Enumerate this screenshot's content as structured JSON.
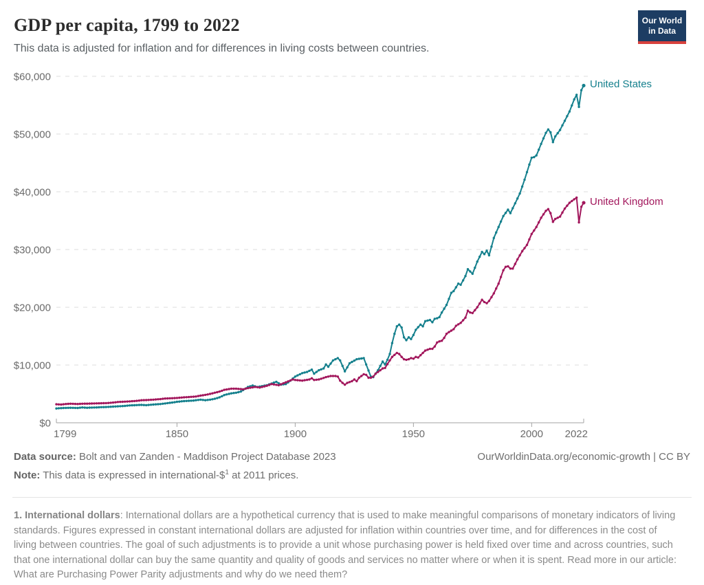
{
  "header": {
    "title": "GDP per capita, 1799 to 2022",
    "subtitle": "This data is adjusted for inflation and for differences in living costs between countries.",
    "logo_line1": "Our World",
    "logo_line2": "in Data",
    "logo_bg_color": "#1d3d63",
    "logo_accent_color": "#d7413d"
  },
  "chart_data": {
    "type": "line",
    "title": "GDP per capita, 1799 to 2022",
    "xlabel": "",
    "ylabel": "",
    "x_range": [
      1799,
      2022
    ],
    "ylim": [
      0,
      60000
    ],
    "grid": "horizontal-dashed",
    "legend_position": "end-of-line-labels",
    "marker": "yearly-dots",
    "y_ticks": [
      {
        "value": 0,
        "label": "$0"
      },
      {
        "value": 10000,
        "label": "$10,000"
      },
      {
        "value": 20000,
        "label": "$20,000"
      },
      {
        "value": 30000,
        "label": "$30,000"
      },
      {
        "value": 40000,
        "label": "$40,000"
      },
      {
        "value": 50000,
        "label": "$50,000"
      },
      {
        "value": 60000,
        "label": "$60,000"
      }
    ],
    "x_ticks": [
      {
        "value": 1799,
        "label": "1799"
      },
      {
        "value": 1850,
        "label": "1850"
      },
      {
        "value": 1900,
        "label": "1900"
      },
      {
        "value": 1950,
        "label": "1950"
      },
      {
        "value": 2000,
        "label": "2000"
      },
      {
        "value": 2022,
        "label": "2022"
      }
    ],
    "series": [
      {
        "name": "United States",
        "color": "#15808D",
        "points": [
          [
            1799,
            2480
          ],
          [
            1802,
            2560
          ],
          [
            1805,
            2600
          ],
          [
            1808,
            2560
          ],
          [
            1810,
            2650
          ],
          [
            1812,
            2600
          ],
          [
            1815,
            2640
          ],
          [
            1818,
            2700
          ],
          [
            1820,
            2730
          ],
          [
            1823,
            2800
          ],
          [
            1825,
            2850
          ],
          [
            1828,
            2920
          ],
          [
            1830,
            3000
          ],
          [
            1833,
            3060
          ],
          [
            1835,
            3100
          ],
          [
            1837,
            3050
          ],
          [
            1840,
            3160
          ],
          [
            1843,
            3240
          ],
          [
            1845,
            3350
          ],
          [
            1848,
            3500
          ],
          [
            1850,
            3630
          ],
          [
            1853,
            3750
          ],
          [
            1855,
            3800
          ],
          [
            1857,
            3850
          ],
          [
            1860,
            4000
          ],
          [
            1862,
            3900
          ],
          [
            1864,
            4000
          ],
          [
            1866,
            4150
          ],
          [
            1868,
            4400
          ],
          [
            1870,
            4800
          ],
          [
            1873,
            5100
          ],
          [
            1875,
            5200
          ],
          [
            1877,
            5400
          ],
          [
            1880,
            6200
          ],
          [
            1882,
            6450
          ],
          [
            1884,
            6200
          ],
          [
            1886,
            6350
          ],
          [
            1888,
            6500
          ],
          [
            1890,
            6800
          ],
          [
            1892,
            7100
          ],
          [
            1894,
            6600
          ],
          [
            1896,
            6700
          ],
          [
            1898,
            7300
          ],
          [
            1900,
            8000
          ],
          [
            1903,
            8600
          ],
          [
            1905,
            8800
          ],
          [
            1907,
            9200
          ],
          [
            1908,
            8500
          ],
          [
            1910,
            9100
          ],
          [
            1912,
            9400
          ],
          [
            1913,
            10100
          ],
          [
            1914,
            9700
          ],
          [
            1916,
            10800
          ],
          [
            1918,
            11200
          ],
          [
            1919,
            10800
          ],
          [
            1921,
            8900
          ],
          [
            1923,
            10300
          ],
          [
            1926,
            11000
          ],
          [
            1929,
            11200
          ],
          [
            1930,
            10100
          ],
          [
            1932,
            8000
          ],
          [
            1933,
            7900
          ],
          [
            1935,
            9100
          ],
          [
            1937,
            10600
          ],
          [
            1938,
            10100
          ],
          [
            1939,
            10900
          ],
          [
            1940,
            11900
          ],
          [
            1941,
            13800
          ],
          [
            1942,
            15400
          ],
          [
            1943,
            16700
          ],
          [
            1944,
            17000
          ],
          [
            1945,
            16500
          ],
          [
            1946,
            14800
          ],
          [
            1947,
            14300
          ],
          [
            1948,
            14800
          ],
          [
            1949,
            14500
          ],
          [
            1950,
            15200
          ],
          [
            1951,
            16100
          ],
          [
            1953,
            17000
          ],
          [
            1954,
            16700
          ],
          [
            1955,
            17600
          ],
          [
            1957,
            17800
          ],
          [
            1958,
            17400
          ],
          [
            1959,
            18000
          ],
          [
            1960,
            18100
          ],
          [
            1961,
            18300
          ],
          [
            1962,
            19100
          ],
          [
            1964,
            20400
          ],
          [
            1966,
            22500
          ],
          [
            1967,
            22800
          ],
          [
            1969,
            24100
          ],
          [
            1970,
            23900
          ],
          [
            1972,
            25400
          ],
          [
            1973,
            26600
          ],
          [
            1975,
            25800
          ],
          [
            1977,
            27900
          ],
          [
            1979,
            29600
          ],
          [
            1980,
            29200
          ],
          [
            1981,
            29800
          ],
          [
            1982,
            29000
          ],
          [
            1984,
            32000
          ],
          [
            1986,
            33900
          ],
          [
            1988,
            35800
          ],
          [
            1990,
            36900
          ],
          [
            1991,
            36300
          ],
          [
            1993,
            38000
          ],
          [
            1995,
            39700
          ],
          [
            1997,
            42100
          ],
          [
            1999,
            44700
          ],
          [
            2000,
            45900
          ],
          [
            2001,
            46000
          ],
          [
            2002,
            46300
          ],
          [
            2004,
            48300
          ],
          [
            2006,
            50200
          ],
          [
            2007,
            50800
          ],
          [
            2008,
            50300
          ],
          [
            2009,
            48600
          ],
          [
            2010,
            49600
          ],
          [
            2012,
            50700
          ],
          [
            2014,
            52300
          ],
          [
            2016,
            53900
          ],
          [
            2018,
            56000
          ],
          [
            2019,
            56800
          ],
          [
            2020,
            54700
          ],
          [
            2021,
            57600
          ],
          [
            2022,
            58400
          ]
        ]
      },
      {
        "name": "United Kingdom",
        "color": "#A2175C",
        "points": [
          [
            1799,
            3200
          ],
          [
            1801,
            3150
          ],
          [
            1803,
            3250
          ],
          [
            1805,
            3300
          ],
          [
            1808,
            3250
          ],
          [
            1810,
            3300
          ],
          [
            1813,
            3320
          ],
          [
            1815,
            3350
          ],
          [
            1818,
            3380
          ],
          [
            1820,
            3400
          ],
          [
            1823,
            3500
          ],
          [
            1825,
            3600
          ],
          [
            1828,
            3650
          ],
          [
            1830,
            3700
          ],
          [
            1833,
            3800
          ],
          [
            1835,
            3900
          ],
          [
            1838,
            3950
          ],
          [
            1840,
            4000
          ],
          [
            1843,
            4100
          ],
          [
            1845,
            4200
          ],
          [
            1848,
            4250
          ],
          [
            1850,
            4300
          ],
          [
            1853,
            4400
          ],
          [
            1855,
            4450
          ],
          [
            1858,
            4550
          ],
          [
            1860,
            4700
          ],
          [
            1863,
            4900
          ],
          [
            1865,
            5100
          ],
          [
            1868,
            5400
          ],
          [
            1870,
            5700
          ],
          [
            1873,
            5900
          ],
          [
            1875,
            5900
          ],
          [
            1878,
            5800
          ],
          [
            1880,
            6000
          ],
          [
            1883,
            6200
          ],
          [
            1885,
            6100
          ],
          [
            1888,
            6400
          ],
          [
            1890,
            6700
          ],
          [
            1893,
            6500
          ],
          [
            1896,
            7000
          ],
          [
            1899,
            7500
          ],
          [
            1900,
            7400
          ],
          [
            1903,
            7300
          ],
          [
            1906,
            7500
          ],
          [
            1907,
            7700
          ],
          [
            1908,
            7400
          ],
          [
            1910,
            7500
          ],
          [
            1913,
            7900
          ],
          [
            1915,
            8100
          ],
          [
            1917,
            8100
          ],
          [
            1918,
            8000
          ],
          [
            1919,
            7300
          ],
          [
            1920,
            6900
          ],
          [
            1921,
            6600
          ],
          [
            1922,
            6900
          ],
          [
            1924,
            7200
          ],
          [
            1925,
            7500
          ],
          [
            1926,
            7200
          ],
          [
            1927,
            7800
          ],
          [
            1929,
            8400
          ],
          [
            1930,
            8300
          ],
          [
            1931,
            7800
          ],
          [
            1932,
            7800
          ],
          [
            1933,
            8000
          ],
          [
            1934,
            8500
          ],
          [
            1935,
            8800
          ],
          [
            1936,
            9100
          ],
          [
            1937,
            9400
          ],
          [
            1938,
            9500
          ],
          [
            1940,
            10800
          ],
          [
            1941,
            11400
          ],
          [
            1943,
            12100
          ],
          [
            1944,
            11900
          ],
          [
            1945,
            11400
          ],
          [
            1946,
            11000
          ],
          [
            1947,
            10900
          ],
          [
            1948,
            11000
          ],
          [
            1949,
            11200
          ],
          [
            1950,
            11100
          ],
          [
            1951,
            11400
          ],
          [
            1952,
            11300
          ],
          [
            1953,
            11700
          ],
          [
            1954,
            12100
          ],
          [
            1955,
            12500
          ],
          [
            1957,
            12800
          ],
          [
            1958,
            12800
          ],
          [
            1959,
            13200
          ],
          [
            1960,
            13900
          ],
          [
            1961,
            14100
          ],
          [
            1962,
            14200
          ],
          [
            1963,
            14700
          ],
          [
            1964,
            15400
          ],
          [
            1965,
            15700
          ],
          [
            1967,
            16200
          ],
          [
            1968,
            16800
          ],
          [
            1970,
            17300
          ],
          [
            1972,
            18200
          ],
          [
            1973,
            19400
          ],
          [
            1974,
            19100
          ],
          [
            1975,
            19000
          ],
          [
            1977,
            20000
          ],
          [
            1979,
            21300
          ],
          [
            1980,
            20900
          ],
          [
            1981,
            20700
          ],
          [
            1982,
            21100
          ],
          [
            1984,
            22400
          ],
          [
            1986,
            24100
          ],
          [
            1988,
            26400
          ],
          [
            1989,
            27000
          ],
          [
            1990,
            27100
          ],
          [
            1991,
            26700
          ],
          [
            1992,
            26700
          ],
          [
            1994,
            28300
          ],
          [
            1996,
            29700
          ],
          [
            1998,
            30800
          ],
          [
            2000,
            32700
          ],
          [
            2002,
            33900
          ],
          [
            2004,
            35500
          ],
          [
            2006,
            36700
          ],
          [
            2007,
            37000
          ],
          [
            2008,
            36300
          ],
          [
            2009,
            34800
          ],
          [
            2010,
            35300
          ],
          [
            2012,
            35700
          ],
          [
            2014,
            37100
          ],
          [
            2016,
            38100
          ],
          [
            2018,
            38700
          ],
          [
            2019,
            39000
          ],
          [
            2020,
            34700
          ],
          [
            2021,
            37400
          ],
          [
            2022,
            38100
          ]
        ]
      }
    ]
  },
  "footer": {
    "data_source_label": "Data source:",
    "data_source_text": " Bolt and van Zanden - Maddison Project Database 2023",
    "url_license": "OurWorldinData.org/economic-growth | CC BY",
    "note_label": "Note:",
    "note_text_before_sup": " This data is expressed in international-$",
    "note_sup": "1",
    "note_text_after_sup": " at 2011 prices."
  },
  "footnote": {
    "lead": "1. International dollars",
    "text": ": International dollars are a hypothetical currency that is used to make meaningful comparisons of monetary indicators of living standards. Figures expressed in constant international dollars are adjusted for inflation within countries over time, and for differences in the cost of living between countries. The goal of such adjustments is to provide a unit whose purchasing power is held fixed over time and across countries, such that one international dollar can buy the same quantity and quality of goods and services no matter where or when it is spent. Read more in our article: What are Purchasing Power Parity adjustments and why do we need them?"
  }
}
